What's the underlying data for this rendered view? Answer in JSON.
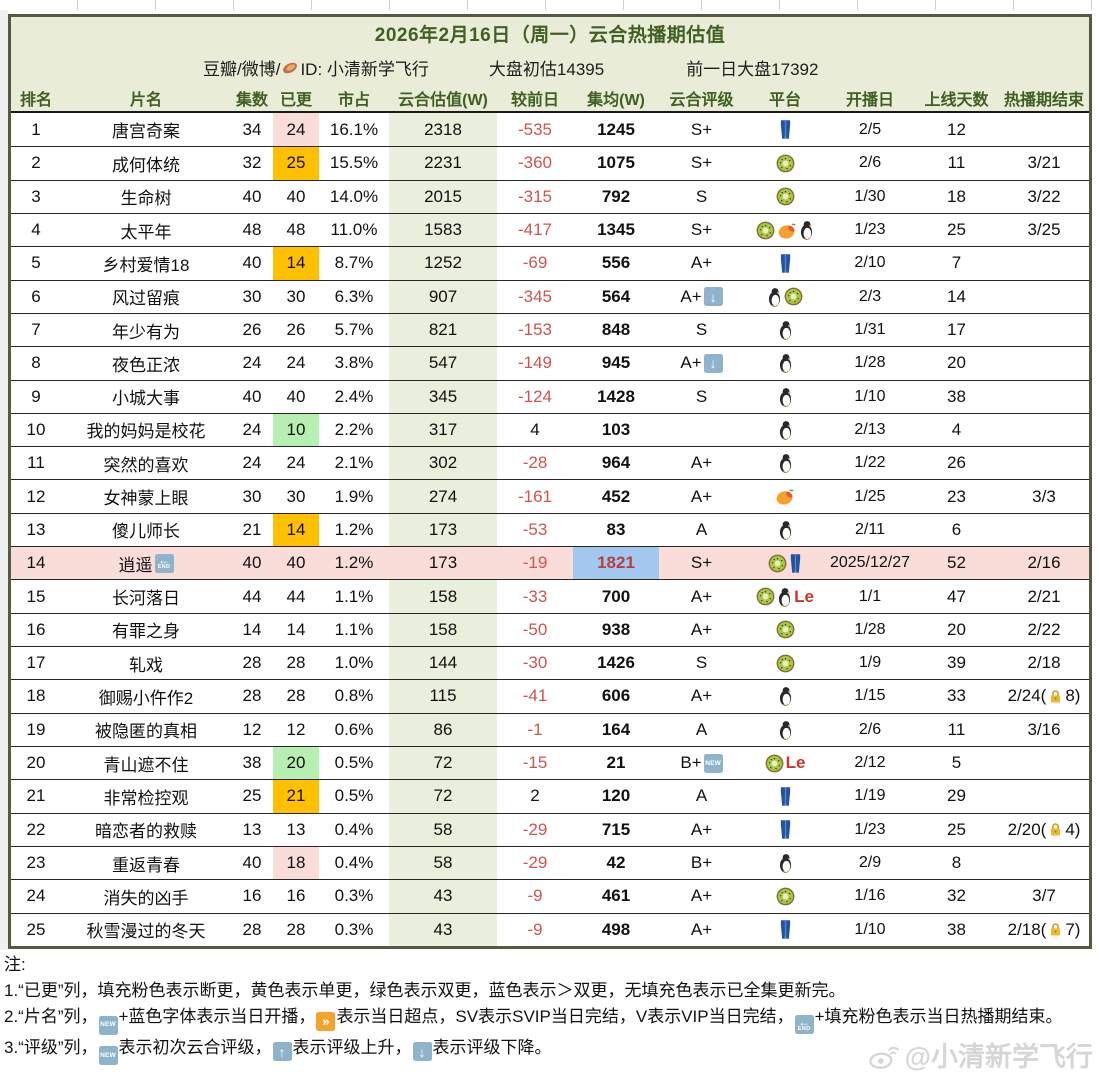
{
  "header": {
    "title": "2026年2月16日（周一）云合热播期估值",
    "source_prefix": "豆瓣/微博/",
    "source_icon": "sweet-potato-icon",
    "source_id": "ID: 小清新学飞行",
    "market_estimate": "大盘初估14395",
    "prev_market": "前一日大盘17392"
  },
  "columns": [
    "排名",
    "片名",
    "集数",
    "已更",
    "市占",
    "云合估值(W)",
    "较前日",
    "集均(W)",
    "云合评级",
    "平台",
    "开播日",
    "上线天数",
    "热播期结束"
  ],
  "rows": [
    {
      "rank": "1",
      "title": "唐宫奇案",
      "episodes": "34",
      "updated": "24",
      "updated_fill": "pink",
      "share": "16.1%",
      "estimate": "2318",
      "delta": "-535",
      "delta_neg": true,
      "avg": "1245",
      "rating": "S+",
      "rating_badge": "",
      "platforms": [
        "jeans"
      ],
      "premiere": "2/5",
      "days": "12",
      "end": ""
    },
    {
      "rank": "2",
      "title": "成何体统",
      "episodes": "32",
      "updated": "25",
      "updated_fill": "yellow",
      "share": "15.5%",
      "estimate": "2231",
      "delta": "-360",
      "delta_neg": true,
      "avg": "1075",
      "rating": "S+",
      "rating_badge": "",
      "platforms": [
        "kiwi"
      ],
      "premiere": "2/6",
      "days": "11",
      "end": "3/21"
    },
    {
      "rank": "3",
      "title": "生命树",
      "episodes": "40",
      "updated": "40",
      "updated_fill": "",
      "share": "14.0%",
      "estimate": "2015",
      "delta": "-315",
      "delta_neg": true,
      "avg": "792",
      "rating": "S",
      "rating_badge": "",
      "platforms": [
        "kiwi"
      ],
      "premiere": "1/30",
      "days": "18",
      "end": "3/22"
    },
    {
      "rank": "4",
      "title": "太平年",
      "episodes": "48",
      "updated": "48",
      "updated_fill": "",
      "share": "11.0%",
      "estimate": "1583",
      "delta": "-417",
      "delta_neg": true,
      "avg": "1345",
      "rating": "S+",
      "rating_badge": "",
      "platforms": [
        "kiwi",
        "mango",
        "penguin"
      ],
      "premiere": "1/23",
      "days": "25",
      "end": "3/25"
    },
    {
      "rank": "5",
      "title": "乡村爱情18",
      "episodes": "40",
      "updated": "14",
      "updated_fill": "yellow",
      "share": "8.7%",
      "estimate": "1252",
      "delta": "-69",
      "delta_neg": true,
      "avg": "556",
      "rating": "A+",
      "rating_badge": "",
      "platforms": [
        "jeans"
      ],
      "premiere": "2/10",
      "days": "7",
      "end": ""
    },
    {
      "rank": "6",
      "title": "风过留痕",
      "episodes": "30",
      "updated": "30",
      "updated_fill": "",
      "share": "6.3%",
      "estimate": "907",
      "delta": "-345",
      "delta_neg": true,
      "avg": "564",
      "rating": "A+",
      "rating_badge": "down",
      "platforms": [
        "penguin",
        "kiwi"
      ],
      "premiere": "2/3",
      "days": "14",
      "end": ""
    },
    {
      "rank": "7",
      "title": "年少有为",
      "episodes": "26",
      "updated": "26",
      "updated_fill": "",
      "share": "5.7%",
      "estimate": "821",
      "delta": "-153",
      "delta_neg": true,
      "avg": "848",
      "rating": "S",
      "rating_badge": "",
      "platforms": [
        "penguin"
      ],
      "premiere": "1/31",
      "days": "17",
      "end": ""
    },
    {
      "rank": "8",
      "title": "夜色正浓",
      "episodes": "24",
      "updated": "24",
      "updated_fill": "",
      "share": "3.8%",
      "estimate": "547",
      "delta": "-149",
      "delta_neg": true,
      "avg": "945",
      "rating": "A+",
      "rating_badge": "down",
      "platforms": [
        "penguin"
      ],
      "premiere": "1/28",
      "days": "20",
      "end": ""
    },
    {
      "rank": "9",
      "title": "小城大事",
      "episodes": "40",
      "updated": "40",
      "updated_fill": "",
      "share": "2.4%",
      "estimate": "345",
      "delta": "-124",
      "delta_neg": true,
      "avg": "1428",
      "rating": "S",
      "rating_badge": "",
      "platforms": [
        "penguin"
      ],
      "premiere": "1/10",
      "days": "38",
      "end": ""
    },
    {
      "rank": "10",
      "title": "我的妈妈是校花",
      "episodes": "24",
      "updated": "10",
      "updated_fill": "green",
      "share": "2.2%",
      "estimate": "317",
      "delta": "4",
      "delta_neg": false,
      "avg": "103",
      "rating": "",
      "rating_badge": "",
      "platforms": [
        "penguin"
      ],
      "premiere": "2/13",
      "days": "4",
      "end": ""
    },
    {
      "rank": "11",
      "title": "突然的喜欢",
      "episodes": "24",
      "updated": "24",
      "updated_fill": "",
      "share": "2.1%",
      "estimate": "302",
      "delta": "-28",
      "delta_neg": true,
      "avg": "964",
      "rating": "A+",
      "rating_badge": "",
      "platforms": [
        "penguin"
      ],
      "premiere": "1/22",
      "days": "26",
      "end": ""
    },
    {
      "rank": "12",
      "title": "女神蒙上眼",
      "episodes": "30",
      "updated": "30",
      "updated_fill": "",
      "share": "1.9%",
      "estimate": "274",
      "delta": "-161",
      "delta_neg": true,
      "avg": "452",
      "rating": "A+",
      "rating_badge": "",
      "platforms": [
        "mango"
      ],
      "premiere": "1/25",
      "days": "23",
      "end": "3/3"
    },
    {
      "rank": "13",
      "title": "傻儿师长",
      "episodes": "21",
      "updated": "14",
      "updated_fill": "yellow",
      "share": "1.2%",
      "estimate": "173",
      "delta": "-53",
      "delta_neg": true,
      "avg": "83",
      "rating": "A",
      "rating_badge": "",
      "platforms": [
        "penguin"
      ],
      "premiere": "2/11",
      "days": "6",
      "end": ""
    },
    {
      "rank": "14",
      "title": "逍遥",
      "title_badge": "end",
      "row_fill": "pink",
      "episodes": "40",
      "updated": "40",
      "updated_fill": "",
      "share": "1.2%",
      "estimate": "173",
      "delta": "-19",
      "delta_neg": true,
      "avg": "1821",
      "avg_fill": "blue",
      "avg_red": true,
      "rating": "S+",
      "rating_badge": "",
      "platforms": [
        "kiwi",
        "jeans"
      ],
      "premiere": "2025/12/27",
      "days": "52",
      "end": "2/16"
    },
    {
      "rank": "15",
      "title": "长河落日",
      "episodes": "44",
      "updated": "44",
      "updated_fill": "",
      "share": "1.1%",
      "estimate": "158",
      "delta": "-33",
      "delta_neg": true,
      "avg": "700",
      "rating": "A+",
      "rating_badge": "",
      "platforms": [
        "kiwi",
        "penguin",
        "le"
      ],
      "premiere": "1/1",
      "days": "47",
      "end": "2/21"
    },
    {
      "rank": "16",
      "title": "有罪之身",
      "episodes": "14",
      "updated": "14",
      "updated_fill": "",
      "share": "1.1%",
      "estimate": "158",
      "delta": "-50",
      "delta_neg": true,
      "avg": "938",
      "rating": "A+",
      "rating_badge": "",
      "platforms": [
        "kiwi"
      ],
      "premiere": "1/28",
      "days": "20",
      "end": "2/22"
    },
    {
      "rank": "17",
      "title": "轧戏",
      "episodes": "28",
      "updated": "28",
      "updated_fill": "",
      "share": "1.0%",
      "estimate": "144",
      "delta": "-30",
      "delta_neg": true,
      "avg": "1426",
      "rating": "S",
      "rating_badge": "",
      "platforms": [
        "kiwi"
      ],
      "premiere": "1/9",
      "days": "39",
      "end": "2/18"
    },
    {
      "rank": "18",
      "title": "御赐小仵作2",
      "episodes": "28",
      "updated": "28",
      "updated_fill": "",
      "share": "0.8%",
      "estimate": "115",
      "delta": "-41",
      "delta_neg": true,
      "avg": "606",
      "rating": "A+",
      "rating_badge": "",
      "platforms": [
        "penguin"
      ],
      "premiere": "1/15",
      "days": "33",
      "end": "2/24(",
      "end_lock": "8)"
    },
    {
      "rank": "19",
      "title": "被隐匿的真相",
      "episodes": "12",
      "updated": "12",
      "updated_fill": "",
      "share": "0.6%",
      "estimate": "86",
      "delta": "-1",
      "delta_neg": true,
      "avg": "164",
      "rating": "A",
      "rating_badge": "",
      "platforms": [
        "penguin"
      ],
      "premiere": "2/6",
      "days": "11",
      "end": "3/16"
    },
    {
      "rank": "20",
      "title": "青山遮不住",
      "episodes": "38",
      "updated": "20",
      "updated_fill": "green",
      "share": "0.5%",
      "estimate": "72",
      "delta": "-15",
      "delta_neg": true,
      "avg": "21",
      "rating": "B+",
      "rating_badge": "new",
      "platforms": [
        "kiwi",
        "le"
      ],
      "premiere": "2/12",
      "days": "5",
      "end": ""
    },
    {
      "rank": "21",
      "title": "非常检控观",
      "episodes": "25",
      "updated": "21",
      "updated_fill": "yellow",
      "share": "0.5%",
      "estimate": "72",
      "delta": "2",
      "delta_neg": false,
      "avg": "120",
      "rating": "A",
      "rating_badge": "",
      "platforms": [
        "jeans"
      ],
      "premiere": "1/19",
      "days": "29",
      "end": ""
    },
    {
      "rank": "22",
      "title": "暗恋者的救赎",
      "episodes": "13",
      "updated": "13",
      "updated_fill": "",
      "share": "0.4%",
      "estimate": "58",
      "delta": "-29",
      "delta_neg": true,
      "avg": "715",
      "rating": "A+",
      "rating_badge": "",
      "platforms": [
        "jeans"
      ],
      "premiere": "1/23",
      "days": "25",
      "end": "2/20(",
      "end_lock": "4)"
    },
    {
      "rank": "23",
      "title": "重返青春",
      "episodes": "40",
      "updated": "18",
      "updated_fill": "pink",
      "share": "0.4%",
      "estimate": "58",
      "delta": "-29",
      "delta_neg": true,
      "avg": "42",
      "rating": "B+",
      "rating_badge": "",
      "platforms": [
        "penguin"
      ],
      "premiere": "2/9",
      "days": "8",
      "end": ""
    },
    {
      "rank": "24",
      "title": "消失的凶手",
      "episodes": "16",
      "updated": "16",
      "updated_fill": "",
      "share": "0.3%",
      "estimate": "43",
      "delta": "-9",
      "delta_neg": true,
      "avg": "461",
      "rating": "A+",
      "rating_badge": "",
      "platforms": [
        "kiwi"
      ],
      "premiere": "1/16",
      "days": "32",
      "end": "3/7"
    },
    {
      "rank": "25",
      "title": "秋雪漫过的冬天",
      "episodes": "28",
      "updated": "28",
      "updated_fill": "",
      "share": "0.3%",
      "estimate": "43",
      "delta": "-9",
      "delta_neg": true,
      "avg": "498",
      "rating": "A+",
      "rating_badge": "",
      "platforms": [
        "jeans"
      ],
      "premiere": "1/10",
      "days": "38",
      "end": "2/18(",
      "end_lock": "7)"
    }
  ],
  "notes": {
    "label": "注:",
    "lines": [
      [
        {
          "t": "1.“已更”列，填充粉色表示断更，黄色表示单更，绿色表示双更，蓝色表示＞双更，无填充色表示已全集更新完。"
        }
      ],
      [
        {
          "t": "2.“片名”列，"
        },
        {
          "i": "new"
        },
        {
          "t": "+蓝色字体表示当日开播，"
        },
        {
          "i": "ff"
        },
        {
          "t": "表示当日超点，SV表示SVIP当日完结，V表示VIP当日完结，"
        },
        {
          "i": "end"
        },
        {
          "t": "+填充粉色表示当日热播期结束。"
        }
      ],
      [
        {
          "t": "3.“评级”列，"
        },
        {
          "i": "new"
        },
        {
          "t": "表示初次云合评级，"
        },
        {
          "i": "up"
        },
        {
          "t": "表示评级上升，"
        },
        {
          "i": "down"
        },
        {
          "t": "表示评级下降。"
        }
      ]
    ]
  },
  "watermark": {
    "text": "@小清新学飞行"
  },
  "colors": {
    "header_bg": "#e9edd8",
    "accent_text": "#3f6021",
    "estimate_col_bg": "#eaeedc",
    "negative_red": "#cc5550",
    "pink_fill": "#fadcd9",
    "yellow_fill": "#ffc000",
    "green_fill": "#b7efb2",
    "blue_fill": "#a3c8ef",
    "badge_blue": "#8fb3ca",
    "badge_orange": "#f5a32a",
    "border_dark": "#535b40"
  }
}
